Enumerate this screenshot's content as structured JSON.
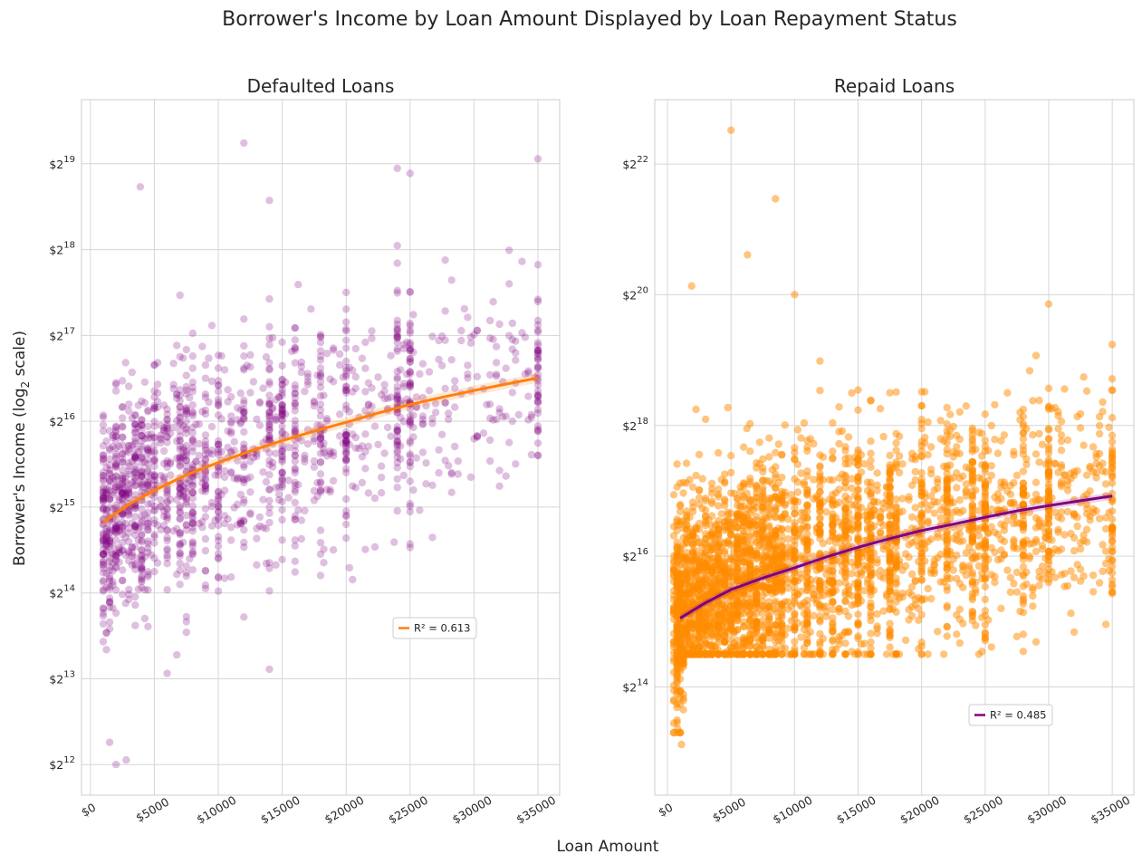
{
  "figure": {
    "title": "Borrower's Income by Loan Amount Displayed by Loan Repayment Status",
    "xlabel": "Loan Amount",
    "ylabel_prefix": "Borrower's Income (log",
    "ylabel_sub": "2",
    "ylabel_suffix": " scale)"
  },
  "chart_data": [
    {
      "type": "scatter",
      "title": "Defaulted Loans",
      "xlabel": "",
      "ylabel": "",
      "y_scale": "log2",
      "x_ticks": [
        {
          "value": 0,
          "label": "$0"
        },
        {
          "value": 5000,
          "label": "$5000"
        },
        {
          "value": 10000,
          "label": "$10000"
        },
        {
          "value": 15000,
          "label": "$15000"
        },
        {
          "value": 20000,
          "label": "$20000"
        },
        {
          "value": 25000,
          "label": "$25000"
        },
        {
          "value": 30000,
          "label": "$30000"
        },
        {
          "value": 35000,
          "label": "$35000"
        }
      ],
      "y_ticks": [
        {
          "value": 4096,
          "base": "$2",
          "exp": "12"
        },
        {
          "value": 8192,
          "base": "$2",
          "exp": "13"
        },
        {
          "value": 16384,
          "base": "$2",
          "exp": "14"
        },
        {
          "value": 32768,
          "base": "$2",
          "exp": "15"
        },
        {
          "value": 65536,
          "base": "$2",
          "exp": "16"
        },
        {
          "value": 131072,
          "base": "$2",
          "exp": "17"
        },
        {
          "value": 262144,
          "base": "$2",
          "exp": "18"
        },
        {
          "value": 524288,
          "base": "$2",
          "exp": "19"
        }
      ],
      "xlim": [
        -700,
        36700
      ],
      "ylim": [
        3200,
        880000
      ],
      "grid": true,
      "point_color": "#800080",
      "line_color": "#ff7f0e",
      "points_generated": true,
      "fit_line": [
        [
          1000,
          29000
        ],
        [
          3000,
          33500
        ],
        [
          5000,
          37500
        ],
        [
          7500,
          42500
        ],
        [
          10000,
          47000
        ],
        [
          12500,
          51500
        ],
        [
          15000,
          56000
        ],
        [
          17500,
          60500
        ],
        [
          20000,
          65000
        ],
        [
          22500,
          70000
        ],
        [
          25000,
          75000
        ],
        [
          27500,
          79500
        ],
        [
          30000,
          84000
        ],
        [
          32500,
          88500
        ],
        [
          35000,
          93000
        ]
      ],
      "legend": {
        "label": "R² = 0.613",
        "placement": "center-right"
      },
      "sample_points": [
        [
          12000,
          620000
        ],
        [
          25000,
          485000
        ],
        [
          3900,
          435000
        ],
        [
          14000,
          390000
        ],
        [
          35000,
          545000
        ],
        [
          24000,
          505000
        ],
        [
          2000,
          4100
        ],
        [
          2800,
          4250
        ],
        [
          1500,
          4900
        ]
      ]
    },
    {
      "type": "scatter",
      "title": "Repaid Loans",
      "xlabel": "",
      "ylabel": "",
      "y_scale": "log2",
      "x_ticks": [
        {
          "value": 0,
          "label": "$0"
        },
        {
          "value": 5000,
          "label": "$5000"
        },
        {
          "value": 10000,
          "label": "$10000"
        },
        {
          "value": 15000,
          "label": "$15000"
        },
        {
          "value": 20000,
          "label": "$20000"
        },
        {
          "value": 25000,
          "label": "$25000"
        },
        {
          "value": 30000,
          "label": "$30000"
        },
        {
          "value": 35000,
          "label": "$35000"
        }
      ],
      "y_ticks": [
        {
          "value": 16384,
          "base": "$2",
          "exp": "14"
        },
        {
          "value": 65536,
          "base": "$2",
          "exp": "16"
        },
        {
          "value": 262144,
          "base": "$2",
          "exp": "18"
        },
        {
          "value": 1048576,
          "base": "$2",
          "exp": "20"
        },
        {
          "value": 4194304,
          "base": "$2",
          "exp": "22"
        }
      ],
      "xlim": [
        -1000,
        36700
      ],
      "ylim": [
        5200,
        8300000
      ],
      "grid": true,
      "point_color": "#ff8c00",
      "line_color": "#800080",
      "points_generated": true,
      "fit_line": [
        [
          1000,
          34000
        ],
        [
          3000,
          40000
        ],
        [
          5000,
          46000
        ],
        [
          7500,
          52000
        ],
        [
          10000,
          58000
        ],
        [
          12500,
          65000
        ],
        [
          15000,
          72000
        ],
        [
          17500,
          79000
        ],
        [
          20000,
          86000
        ],
        [
          22500,
          92000
        ],
        [
          25000,
          99000
        ],
        [
          27500,
          106000
        ],
        [
          30000,
          112000
        ],
        [
          32500,
          118000
        ],
        [
          35000,
          124000
        ]
      ],
      "legend": {
        "label": "R² = 0.485",
        "placement": "lower-right"
      },
      "sample_points": [
        [
          5000,
          6000000
        ],
        [
          8500,
          2900000
        ],
        [
          6300,
          1600000
        ],
        [
          1900,
          1150000
        ],
        [
          10000,
          1050000
        ],
        [
          30000,
          950000
        ],
        [
          800,
          10500
        ],
        [
          1100,
          8900
        ]
      ]
    }
  ]
}
